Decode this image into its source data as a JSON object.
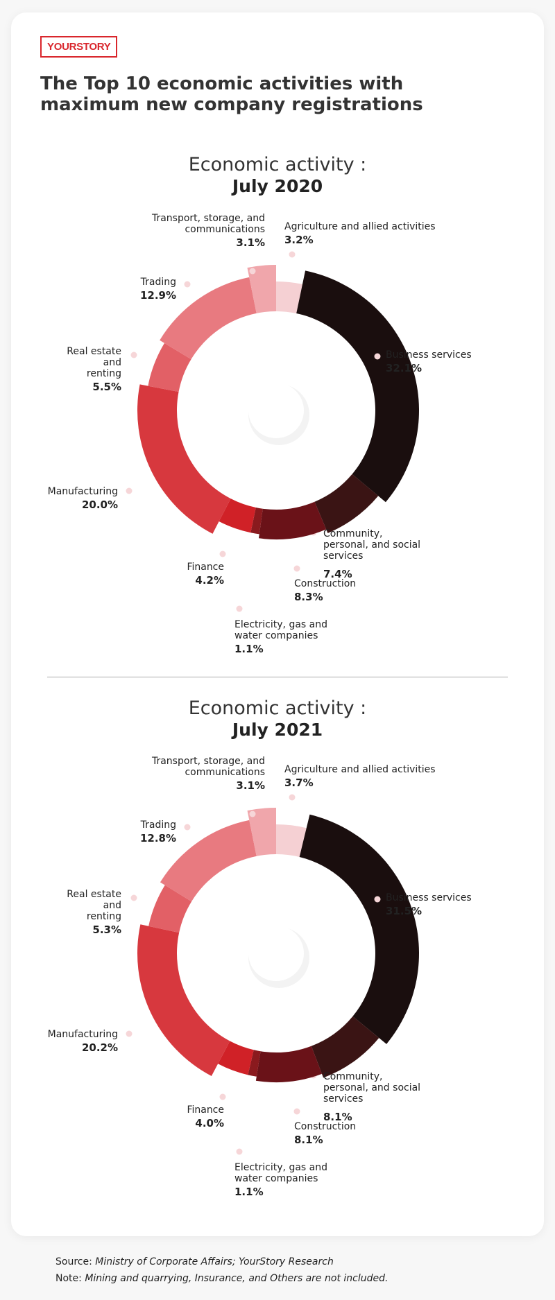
{
  "header": {
    "brand": "YOURSTORY",
    "title": "The Top 10 economic activities with maximum new company registrations"
  },
  "chart_data": [
    {
      "type": "pie",
      "title": "Economic activity :",
      "subtitle": "July 2020",
      "categories": [
        "Agriculture and allied activities",
        "Business services",
        "Community, personal, and social services",
        "Construction",
        "Electricity, gas and water companies",
        "Finance",
        "Manufacturing",
        "Real estate and renting",
        "Trading",
        "Transport, storage, and communications"
      ],
      "values": [
        3.2,
        32.1,
        7.4,
        8.3,
        1.1,
        4.2,
        20,
        5.5,
        12.9,
        3.1
      ],
      "value_labels": [
        "3.2%",
        "32.1%",
        "7.4%",
        "8.3%",
        "1.1%",
        "4.2%",
        "20.0%",
        "5.5%",
        "12.9%",
        "3.1%"
      ],
      "colors": [
        "#f5d0d3",
        "#1a0e0e",
        "#3a1414",
        "#6a1218",
        "#8a1a1e",
        "#d02127",
        "#d7383e",
        "#e26066",
        "#e87a80",
        "#f0a6ab"
      ]
    },
    {
      "type": "pie",
      "title": "Economic activity :",
      "subtitle": "July 2021",
      "categories": [
        "Agriculture and allied activities",
        "Business services",
        "Community, personal, and social services",
        "Construction",
        "Electricity, gas and water companies",
        "Finance",
        "Manufacturing",
        "Real estate and renting",
        "Trading",
        "Transport, storage, and communications"
      ],
      "values": [
        3.7,
        31.5,
        8.1,
        8.1,
        1.1,
        4,
        20.2,
        5.3,
        12.8,
        3.1
      ],
      "value_labels": [
        "3.7%",
        "31.5%",
        "8.1%",
        "8.1%",
        "1.1%",
        "4.0%",
        "20.2%",
        "5.3%",
        "12.8%",
        "3.1%"
      ],
      "colors": [
        "#f5d0d3",
        "#1a0e0e",
        "#3a1414",
        "#6a1218",
        "#8a1a1e",
        "#d02127",
        "#d7383e",
        "#e26066",
        "#e87a80",
        "#f0a6ab"
      ]
    }
  ],
  "source": {
    "label": "Source:",
    "text": "Ministry of Corporate Affairs; YourStory Research"
  },
  "note": {
    "label": "Note:",
    "text": "Mining and quarrying, Insurance, and Others are not included."
  }
}
